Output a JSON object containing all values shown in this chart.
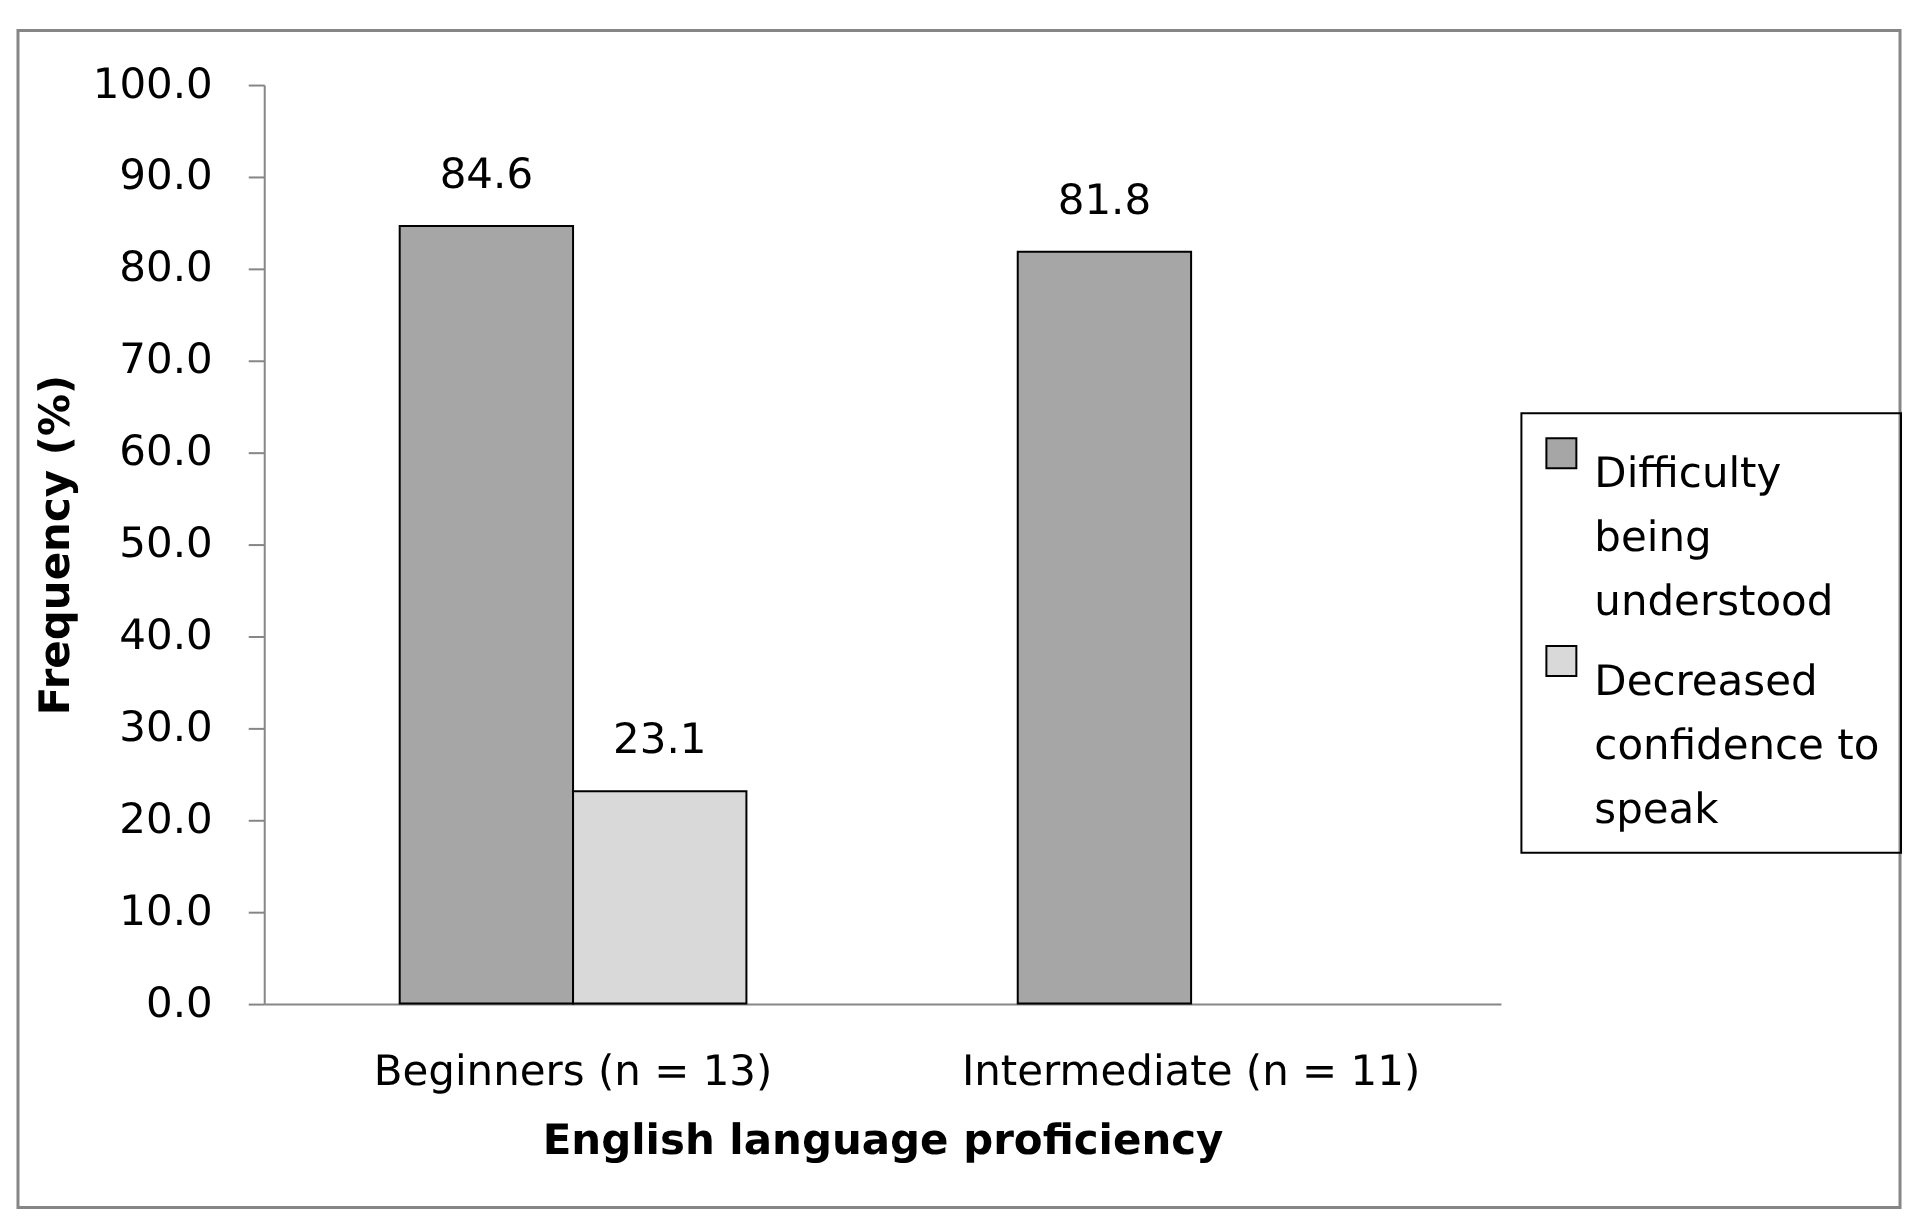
{
  "chart_data": {
    "type": "bar",
    "xlabel": "English language proficiency",
    "ylabel": "Frequency (%)",
    "categories": [
      "Beginners (n = 13)",
      "Intermediate (n = 11)"
    ],
    "series": [
      {
        "name": "Difficulty being understood",
        "color": "#a6a6a6",
        "values": [
          84.6,
          81.8
        ]
      },
      {
        "name": "Decreased confidence to speak",
        "color": "#d9d9d9",
        "values": [
          23.1,
          null
        ]
      }
    ],
    "ylim": [
      0,
      100
    ],
    "yticks": [
      {
        "value": 0,
        "label": "0.0"
      },
      {
        "value": 10,
        "label": "10.0"
      },
      {
        "value": 20,
        "label": "20.0"
      },
      {
        "value": 30,
        "label": "30.0"
      },
      {
        "value": 40,
        "label": "40.0"
      },
      {
        "value": 50,
        "label": "50.0"
      },
      {
        "value": 60,
        "label": "60.0"
      },
      {
        "value": 70,
        "label": "70.0"
      },
      {
        "value": 80,
        "label": "80.0"
      },
      {
        "value": 90,
        "label": "90.0"
      },
      {
        "value": 100,
        "label": "100.0"
      }
    ],
    "data_labels": true,
    "legend": "right"
  }
}
